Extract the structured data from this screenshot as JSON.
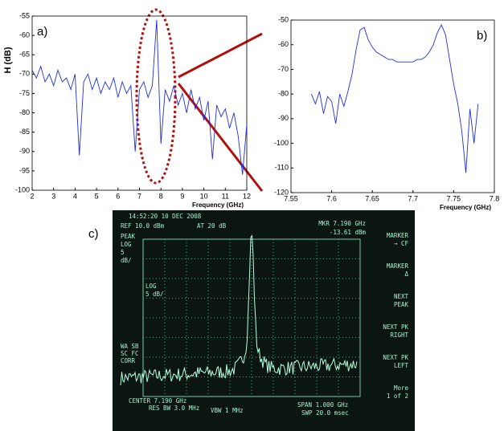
{
  "chart_data": [
    {
      "type": "line",
      "panel_label": "a)",
      "ylabel": "H (dB)",
      "xlabel": "Frequency (GHz)",
      "color": "#1f2fd6",
      "x": [
        2,
        2.2,
        2.4,
        2.6,
        2.8,
        3,
        3.2,
        3.4,
        3.6,
        3.8,
        4,
        4.2,
        4.4,
        4.6,
        4.8,
        5,
        5.2,
        5.4,
        5.6,
        5.8,
        6,
        6.2,
        6.4,
        6.6,
        6.8,
        7,
        7.2,
        7.4,
        7.6,
        7.8,
        8,
        8.2,
        8.4,
        8.6,
        8.8,
        9,
        9.2,
        9.4,
        9.6,
        9.8,
        10,
        10.2,
        10.4,
        10.6,
        10.8,
        11,
        11.2,
        11.4,
        11.6,
        11.8,
        12
      ],
      "values": [
        -69,
        -71,
        -68,
        -72,
        -70,
        -73,
        -69,
        -72,
        -71,
        -74,
        -70,
        -91,
        -72,
        -70,
        -74,
        -71,
        -75,
        -72,
        -74,
        -71,
        -76,
        -72,
        -75,
        -73,
        -90,
        -74,
        -72,
        -76,
        -73,
        -56,
        -88,
        -74,
        -77,
        -73,
        -78,
        -75,
        -80,
        -74,
        -79,
        -76,
        -82,
        -77,
        -92,
        -78,
        -81,
        -79,
        -84,
        -80,
        -86,
        -96,
        -83
      ],
      "xlim": [
        2,
        12
      ],
      "xticks": [
        2,
        3,
        4,
        5,
        6,
        7,
        8,
        9,
        10,
        11,
        12
      ],
      "ylim": [
        -100,
        -55
      ],
      "yticks": [
        -100,
        -95,
        -90,
        -85,
        -80,
        -75,
        -70,
        -65,
        -60,
        -55
      ]
    },
    {
      "type": "line",
      "panel_label": "b)",
      "xlabel": "Frequency (GHz)",
      "color": "#1f2fd6",
      "x": [
        7.575,
        7.58,
        7.585,
        7.59,
        7.595,
        7.6,
        7.605,
        7.61,
        7.615,
        7.62,
        7.625,
        7.63,
        7.635,
        7.64,
        7.645,
        7.65,
        7.655,
        7.66,
        7.665,
        7.67,
        7.675,
        7.68,
        7.685,
        7.69,
        7.695,
        7.7,
        7.705,
        7.71,
        7.715,
        7.72,
        7.725,
        7.73,
        7.735,
        7.74,
        7.745,
        7.75,
        7.755,
        7.76,
        7.765,
        7.77,
        7.775,
        7.78
      ],
      "values": [
        -80,
        -84,
        -79,
        -88,
        -81,
        -83,
        -92,
        -80,
        -85,
        -79,
        -72,
        -62,
        -54,
        -53,
        -58,
        -61,
        -63,
        -64,
        -65,
        -66,
        -66,
        -67,
        -67,
        -67,
        -67,
        -67,
        -66,
        -66,
        -65,
        -63,
        -60,
        -55,
        -52,
        -56,
        -66,
        -76,
        -84,
        -95,
        -112,
        -86,
        -100,
        -84
      ],
      "xlim": [
        7.55,
        7.8
      ],
      "xticks": [
        7.55,
        7.6,
        7.65,
        7.7,
        7.75,
        7.8
      ],
      "ylim": [
        -120,
        -50
      ],
      "yticks": [
        -120,
        -110,
        -100,
        -90,
        -80,
        -70,
        -60,
        -50
      ]
    }
  ],
  "photo": {
    "panel_label": "c)",
    "timestamp": "14:52:20  10 DEC 2008",
    "ref": "REF 10.0 dBm",
    "atten": "AT 20 dB",
    "marker_freq": "MKR 7.190 GHz",
    "marker_level": "-13.61 dBm",
    "left_labels": [
      "PEAK",
      "LOG",
      "5",
      "dB/"
    ],
    "scale_label": [
      "LOG",
      "5 dB/"
    ],
    "corr_labels": [
      "WA SB",
      "SC FC",
      "CORR"
    ],
    "softkeys": [
      [
        "MARKER",
        "→ CF"
      ],
      [
        "MARKER",
        "Δ"
      ],
      [
        "NEXT",
        "PEAK"
      ],
      [
        "NEXT PK",
        "RIGHT"
      ],
      [
        "NEXT PK",
        "LEFT"
      ],
      [
        "More",
        "1 of 2"
      ]
    ],
    "center": "CENTER 7.190 GHz",
    "res_bw": "RES BW 3.0 MHz",
    "vbw": "VBW 1 MHz",
    "span": "SPAN 1.000 GHz",
    "swp": "SWP 20.0 msec"
  }
}
